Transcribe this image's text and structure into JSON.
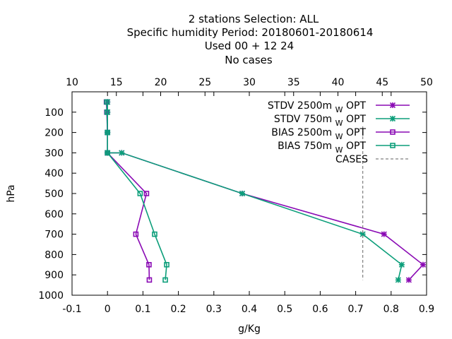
{
  "title_lines": [
    "2 stations Selection: ALL",
    "Specific humidity  Period: 20180601-20180614",
    "Used  00 + 12 24",
    "No cases"
  ],
  "chart_data": {
    "type": "line",
    "xlabel": "g/Kg",
    "ylabel": "hPa",
    "xlim": [
      -0.1,
      0.9
    ],
    "ylim": [
      1000,
      0
    ],
    "x_ticks": [
      "-0.1",
      "0",
      "0.1",
      "0.2",
      "0.3",
      "0.4",
      "0.5",
      "0.6",
      "0.7",
      "0.8",
      "0.9"
    ],
    "x_tick_values": [
      -0.1,
      0,
      0.1,
      0.2,
      0.3,
      0.4,
      0.5,
      0.6,
      0.7,
      0.8,
      0.9
    ],
    "y_ticks": [
      "100",
      "200",
      "300",
      "400",
      "500",
      "600",
      "700",
      "800",
      "900",
      "1000"
    ],
    "y_tick_values": [
      100,
      200,
      300,
      400,
      500,
      600,
      700,
      800,
      900,
      1000
    ],
    "x2_ticks": [
      "10",
      "15",
      "20",
      "25",
      "30",
      "35",
      "40",
      "45",
      "50"
    ],
    "x2_tick_values": [
      10,
      15,
      20,
      25,
      30,
      35,
      40,
      45,
      50
    ],
    "x2lim": [
      10,
      50
    ],
    "grid": false,
    "legend_position": "top-right",
    "series": [
      {
        "name": "STDV 2500m",
        "name_sub": "W",
        "name_suffix": "OPT",
        "color": "#8a0ab4",
        "marker": "x",
        "x": [
          0.0,
          0.0,
          0.0,
          0.0,
          0.04,
          0.38,
          0.78,
          0.89,
          0.85
        ],
        "y": [
          50,
          100,
          200,
          300,
          300,
          500,
          700,
          850,
          925
        ]
      },
      {
        "name": "STDV 750m",
        "name_sub": "W",
        "name_suffix": "OPT",
        "color": "#0c9e7a",
        "marker": "x",
        "x": [
          0.0,
          0.0,
          0.0,
          0.0,
          0.04,
          0.38,
          0.72,
          0.83,
          0.82
        ],
        "y": [
          50,
          100,
          200,
          300,
          300,
          500,
          700,
          850,
          925
        ]
      },
      {
        "name": "BIAS 2500m",
        "name_sub": "W",
        "name_suffix": "OPT",
        "color": "#8a0ab4",
        "marker": "square",
        "x": [
          -0.003,
          -0.002,
          0.0,
          0.0,
          0.11,
          0.08,
          0.117,
          0.118
        ],
        "y": [
          50,
          100,
          200,
          300,
          500,
          700,
          850,
          925
        ]
      },
      {
        "name": "BIAS 750m",
        "name_sub": "W",
        "name_suffix": "OPT",
        "color": "#0c9e7a",
        "marker": "square",
        "x": [
          -0.002,
          -0.001,
          0.0,
          0.0,
          0.092,
          0.133,
          0.167,
          0.163
        ],
        "y": [
          50,
          100,
          200,
          300,
          500,
          700,
          850,
          925
        ]
      },
      {
        "name": "CASES",
        "color": "#808080",
        "marker": "none",
        "dashed": true,
        "x2": [
          42.8,
          42.8
        ],
        "y": [
          170,
          925
        ]
      }
    ]
  }
}
